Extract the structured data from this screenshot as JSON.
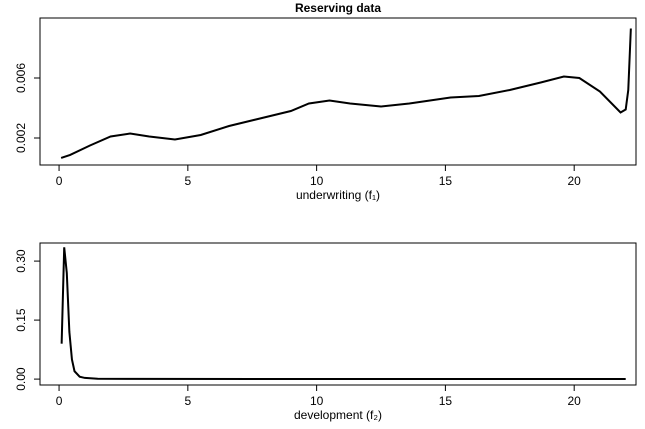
{
  "chart_data": [
    {
      "type": "line",
      "title": "Reserving data",
      "xlabel": "underwriting (f₁)",
      "x": [
        0.08,
        0.43,
        1.2,
        2.0,
        2.76,
        3.5,
        4.5,
        5.5,
        6.6,
        7.8,
        9.0,
        9.7,
        10.5,
        11.3,
        12.5,
        13.6,
        14.4,
        15.2,
        16.3,
        17.5,
        18.7,
        19.6,
        20.2,
        21.0,
        21.8,
        22.0,
        22.1,
        22.2
      ],
      "values": [
        0.00067,
        0.00087,
        0.0015,
        0.0021,
        0.0023,
        0.0021,
        0.0019,
        0.0022,
        0.0028,
        0.0033,
        0.0038,
        0.0043,
        0.0045,
        0.0043,
        0.0041,
        0.0043,
        0.0045,
        0.0047,
        0.0048,
        0.0052,
        0.0057,
        0.0061,
        0.006,
        0.0051,
        0.0037,
        0.0039,
        0.0052,
        0.0093
      ],
      "color": "#000000",
      "xlim": [
        -0.74,
        22.4
      ],
      "xticks": [
        0,
        5,
        10,
        15,
        20
      ],
      "ylim": [
        0.0002,
        0.01
      ],
      "yticks": [
        0.002,
        0.006
      ]
    },
    {
      "type": "line",
      "xlabel": "development (f₂)",
      "x": [
        0.1,
        0.2,
        0.3,
        0.4,
        0.5,
        0.6,
        0.8,
        1.0,
        1.5,
        3,
        10,
        22
      ],
      "values": [
        0.09,
        0.335,
        0.27,
        0.12,
        0.05,
        0.02,
        0.006,
        0.003,
        0.001,
        0.0005,
        0.0003,
        0.0002
      ],
      "color": "#000000",
      "xlim": [
        -0.74,
        22.4
      ],
      "xticks": [
        0,
        5,
        10,
        15,
        20
      ],
      "ylim": [
        -0.015,
        0.346
      ],
      "yticks": [
        {
          "value": 0,
          "label": "0.00"
        },
        0.15,
        {
          "value": 0.3,
          "label": "0.30"
        }
      ]
    }
  ]
}
